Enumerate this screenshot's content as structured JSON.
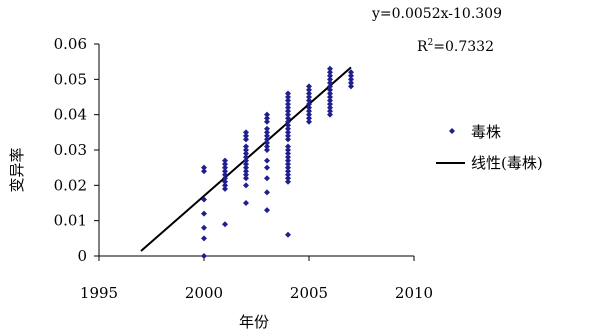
{
  "chart_data": {
    "type": "scatter",
    "xlabel": "年份",
    "ylabel": "变异率",
    "xlim": [
      1995,
      2010
    ],
    "ylim": [
      0,
      0.06
    ],
    "x_ticks": [
      "1995",
      "2000",
      "2005",
      "2010"
    ],
    "y_ticks": [
      "0",
      "0.01",
      "0.02",
      "0.03",
      "0.04",
      "0.05",
      "0.06"
    ],
    "equation": "y=0.0052x-10.309",
    "r_squared_base": "R",
    "r_squared_exp": "2",
    "r_squared_rest": "=0.7332",
    "series": [
      {
        "name": "毒株",
        "type": "scatter",
        "color": "#1f1f8f",
        "marker": "diamond",
        "points": [
          [
            2000,
            0.0
          ],
          [
            2000,
            0.005
          ],
          [
            2000,
            0.008
          ],
          [
            2000,
            0.012
          ],
          [
            2000,
            0.016
          ],
          [
            2000,
            0.024
          ],
          [
            2000,
            0.025
          ],
          [
            2001,
            0.009
          ],
          [
            2001,
            0.019
          ],
          [
            2001,
            0.02
          ],
          [
            2001,
            0.021
          ],
          [
            2001,
            0.022
          ],
          [
            2001,
            0.023
          ],
          [
            2001,
            0.024
          ],
          [
            2001,
            0.025
          ],
          [
            2001,
            0.026
          ],
          [
            2001,
            0.027
          ],
          [
            2002,
            0.015
          ],
          [
            2002,
            0.02
          ],
          [
            2002,
            0.022
          ],
          [
            2002,
            0.023
          ],
          [
            2002,
            0.024
          ],
          [
            2002,
            0.025
          ],
          [
            2002,
            0.026
          ],
          [
            2002,
            0.027
          ],
          [
            2002,
            0.028
          ],
          [
            2002,
            0.029
          ],
          [
            2002,
            0.03
          ],
          [
            2002,
            0.031
          ],
          [
            2002,
            0.033
          ],
          [
            2002,
            0.034
          ],
          [
            2002,
            0.035
          ],
          [
            2003,
            0.013
          ],
          [
            2003,
            0.018
          ],
          [
            2003,
            0.022
          ],
          [
            2003,
            0.025
          ],
          [
            2003,
            0.027
          ],
          [
            2003,
            0.03
          ],
          [
            2003,
            0.031
          ],
          [
            2003,
            0.032
          ],
          [
            2003,
            0.033
          ],
          [
            2003,
            0.034
          ],
          [
            2003,
            0.035
          ],
          [
            2003,
            0.036
          ],
          [
            2003,
            0.038
          ],
          [
            2003,
            0.039
          ],
          [
            2003,
            0.04
          ],
          [
            2004,
            0.006
          ],
          [
            2004,
            0.021
          ],
          [
            2004,
            0.022
          ],
          [
            2004,
            0.023
          ],
          [
            2004,
            0.024
          ],
          [
            2004,
            0.025
          ],
          [
            2004,
            0.026
          ],
          [
            2004,
            0.027
          ],
          [
            2004,
            0.028
          ],
          [
            2004,
            0.029
          ],
          [
            2004,
            0.03
          ],
          [
            2004,
            0.031
          ],
          [
            2004,
            0.033
          ],
          [
            2004,
            0.034
          ],
          [
            2004,
            0.035
          ],
          [
            2004,
            0.036
          ],
          [
            2004,
            0.037
          ],
          [
            2004,
            0.038
          ],
          [
            2004,
            0.039
          ],
          [
            2004,
            0.04
          ],
          [
            2004,
            0.041
          ],
          [
            2004,
            0.042
          ],
          [
            2004,
            0.043
          ],
          [
            2004,
            0.044
          ],
          [
            2004,
            0.045
          ],
          [
            2004,
            0.046
          ],
          [
            2005,
            0.038
          ],
          [
            2005,
            0.039
          ],
          [
            2005,
            0.04
          ],
          [
            2005,
            0.041
          ],
          [
            2005,
            0.042
          ],
          [
            2005,
            0.043
          ],
          [
            2005,
            0.044
          ],
          [
            2005,
            0.045
          ],
          [
            2005,
            0.046
          ],
          [
            2005,
            0.047
          ],
          [
            2005,
            0.048
          ],
          [
            2006,
            0.04
          ],
          [
            2006,
            0.041
          ],
          [
            2006,
            0.042
          ],
          [
            2006,
            0.043
          ],
          [
            2006,
            0.044
          ],
          [
            2006,
            0.045
          ],
          [
            2006,
            0.046
          ],
          [
            2006,
            0.047
          ],
          [
            2006,
            0.048
          ],
          [
            2006,
            0.049
          ],
          [
            2006,
            0.05
          ],
          [
            2006,
            0.051
          ],
          [
            2006,
            0.052
          ],
          [
            2006,
            0.053
          ],
          [
            2007,
            0.048
          ],
          [
            2007,
            0.049
          ],
          [
            2007,
            0.05
          ],
          [
            2007,
            0.051
          ],
          [
            2007,
            0.052
          ]
        ]
      },
      {
        "name": "线性(毒株)",
        "type": "line",
        "color": "#000000",
        "points": [
          [
            1997,
            0.0014
          ],
          [
            2007,
            0.0534
          ]
        ]
      }
    ],
    "legend_position": "right"
  }
}
